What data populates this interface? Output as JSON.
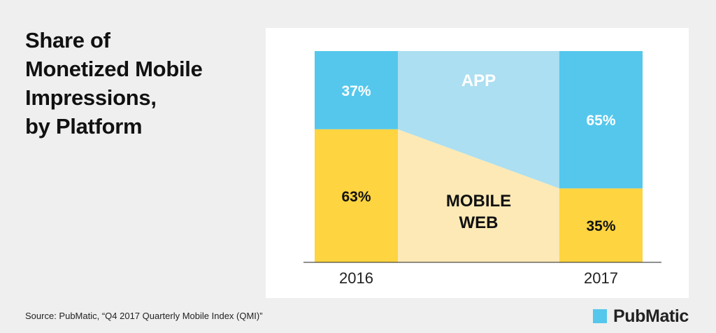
{
  "title_lines": [
    "Share of",
    "Monetized Mobile",
    "Impressions,",
    "by Platform"
  ],
  "source": "Source: PubMatic, “Q4 2017 Quarterly Mobile Index (QMI)”",
  "brand": "PubMatic",
  "colors": {
    "app": "#55c7ec",
    "app_light": "#abdff1",
    "web": "#fed440",
    "web_light": "#fde9b6",
    "text_dark": "#111111",
    "text_light": "#ffffff",
    "axis": "#222222",
    "panel": "#ffffff",
    "page": "#efefef",
    "brand_mark": "#55c7ec"
  },
  "chart_data": {
    "type": "bar",
    "stacked": true,
    "percent": true,
    "categories": [
      "2016",
      "2017"
    ],
    "series": [
      {
        "name": "MOBILE WEB",
        "name_lines": [
          "MOBILE",
          "WEB"
        ],
        "values": [
          63,
          35
        ],
        "labels": [
          "63%",
          "35%"
        ],
        "color": "#fed440",
        "area_color": "#fde9b6"
      },
      {
        "name": "APP",
        "name_lines": [
          "APP"
        ],
        "values": [
          37,
          65
        ],
        "labels": [
          "37%",
          "65%"
        ],
        "color": "#55c7ec",
        "area_color": "#abdff1"
      }
    ],
    "ylim": [
      0,
      100
    ],
    "grid": false,
    "legend": "none"
  }
}
